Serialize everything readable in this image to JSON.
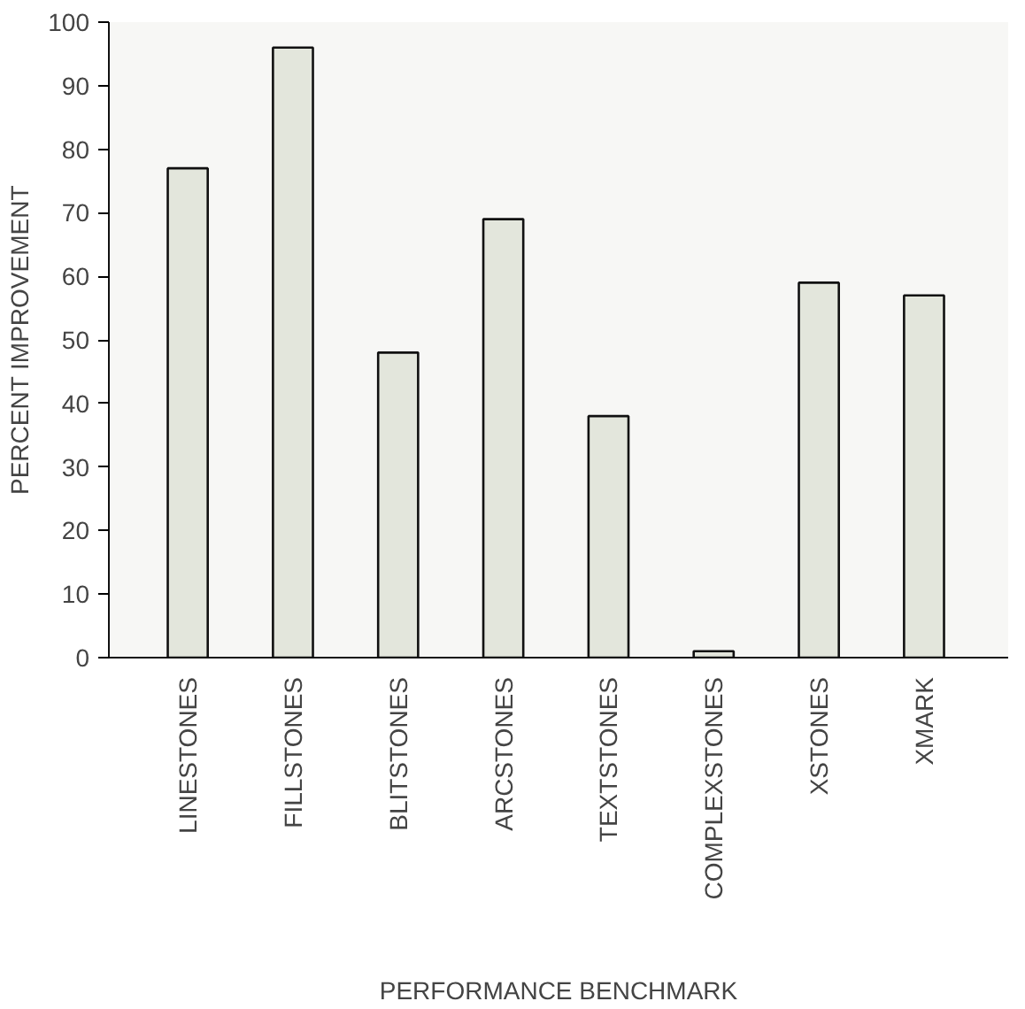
{
  "chart_data": {
    "type": "bar",
    "xlabel": "PERFORMANCE BENCHMARK",
    "ylabel": "PERCENT IMPROVEMENT",
    "categories": [
      "LINESTONES",
      "FILLSTONES",
      "BLITSTONES",
      "ARCSTONES",
      "TEXTSTONES",
      "COMPLEXSTONES",
      "XSTONES",
      "XMARK"
    ],
    "values": [
      77,
      96,
      48,
      69,
      38,
      1,
      59,
      57
    ],
    "color": "#e3e6dc",
    "ylim": [
      0,
      100
    ],
    "yticks": [
      0,
      10,
      20,
      30,
      40,
      50,
      60,
      70,
      80,
      90,
      100
    ],
    "grid": false
  }
}
